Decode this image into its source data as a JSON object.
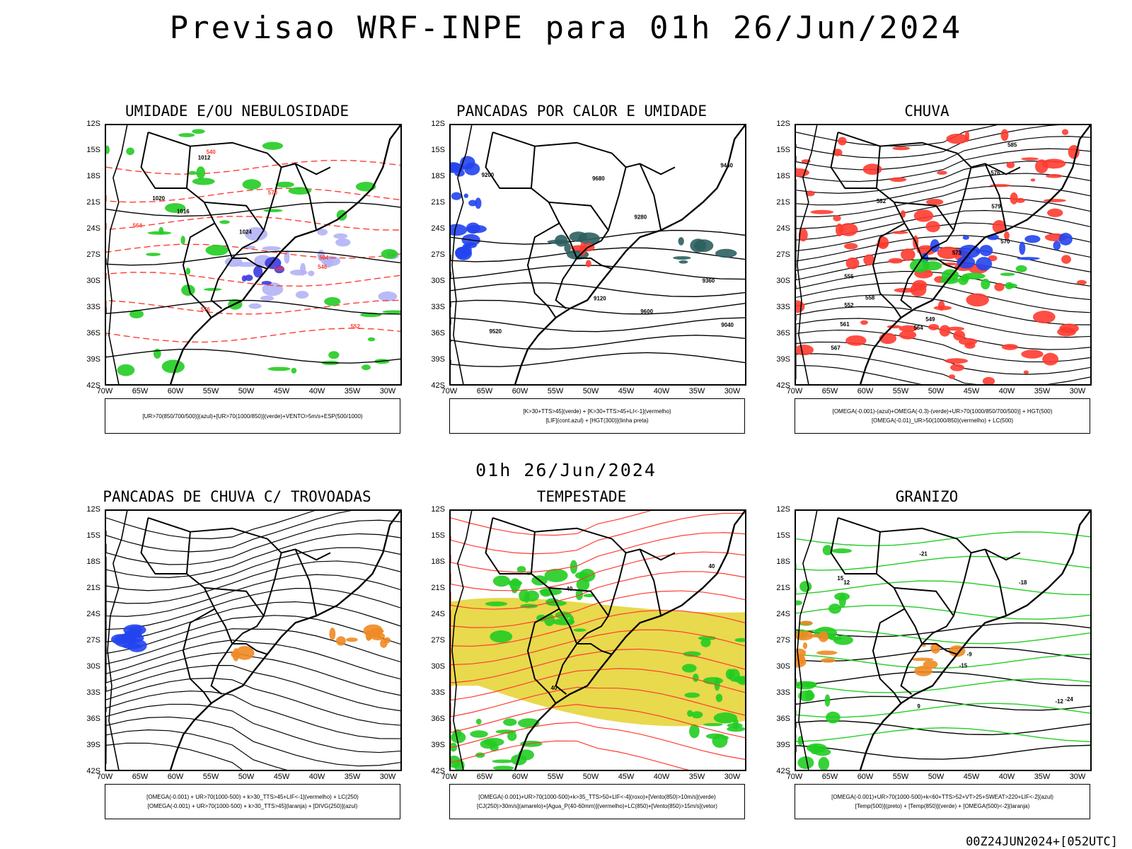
{
  "header": {
    "title": "Previsao WRF-INPE  para 01h 26/Jun/2024",
    "mid_title": "01h 26/Jun/2024",
    "footer": "00Z24JUN2024+[052UTC]"
  },
  "axes": {
    "lat_labels": [
      "12S",
      "15S",
      "18S",
      "21S",
      "24S",
      "27S",
      "30S",
      "33S",
      "36S",
      "39S",
      "42S"
    ],
    "lon_labels": [
      "70W",
      "65W",
      "60W",
      "55W",
      "50W",
      "45W",
      "40W",
      "35W",
      "30W"
    ]
  },
  "panels": [
    {
      "id": "umidade",
      "title": "UMIDADE E/OU NEBULOSIDADE",
      "legend": [
        "[UR>70(850/700/500)](azul)+[UR>70(1000/850)](verde)+VENTO>5m/s+ESP(500/1000)"
      ],
      "labels": [
        "1016",
        "1020",
        "1024",
        "1012",
        "576",
        "570",
        "564",
        "558",
        "552",
        "546",
        "540",
        "534"
      ]
    },
    {
      "id": "pancadas_calor",
      "title": "PANCADAS POR CALOR E UMIDADE",
      "legend": [
        "[K>30+TTS>45](verde) + [K>30+TTS>45+LI<-1](vermelho)",
        "[LIF](cont.azul) + [HGT(300)](linha preta)"
      ],
      "labels": [
        "9680",
        "9600",
        "9520",
        "9440",
        "9360",
        "9280",
        "9200",
        "9120",
        "9040"
      ]
    },
    {
      "id": "chuva",
      "title": "CHUVA",
      "legend": [
        "[OMEGA(-0.001)-(azul)+OMEGA(-0.3)-(verde)+UR>70(1000/850/700/500)] + HGT(500)",
        "[OMEGA(-0.01)_UR>50(1000/850)(vermelho) + LC(500)"
      ],
      "labels": [
        "585",
        "582",
        "579",
        "576",
        "573",
        "570",
        "567",
        "564",
        "561",
        "558",
        "555",
        "552",
        "549"
      ]
    },
    {
      "id": "pancadas_trovoadas",
      "title": "PANCADAS DE CHUVA C/ TROVOADAS",
      "legend": [
        "[OMEGA(-0.001) + UR>70(1000-500) + k>30_TTS>45+LIF<-1](vermelho) + LC(250)",
        "[OMEGA(-0.001) + UR>70(1000-500) + k>30_TTS>45](laranja) + [DIVG(250)](azul)"
      ],
      "labels": []
    },
    {
      "id": "tempestade",
      "title": "TEMPESTADE",
      "legend": [
        "[OMEGA(-0.001)+UR>70(1000-500)+k>35_TTS>50+LIF<-4](roxo)+[Vento(850)>10m/s](verde)",
        "[CJ(250)>30m/s](amarelo)+[Agua_P(40-60mm)](vermelho)+LC(850)+[Vento(850)>15m/s](vetor)"
      ],
      "labels": [
        "40",
        "40",
        "40"
      ]
    },
    {
      "id": "granizo",
      "title": "GRANIZO",
      "legend": [
        "[OMEGA(-0.001)+UR>70(1000-500)+k<60+TTS>52+VT>25+SWEAT>220+LIF<-2](azul)",
        "[Temp(500)](preto) + [Temp(850)](verde) + [OMEGA(500)<-2](laranja)"
      ],
      "labels": [
        "-9",
        "-12",
        "-15",
        "-18",
        "-21",
        "-24",
        "12",
        "15",
        "9"
      ]
    }
  ],
  "colors": {
    "coast": "#000000",
    "blue_shade": "#b3b3f5",
    "blue_shade_dark": "#3a3ae0",
    "green": "#22cc22",
    "red": "#ff3b30",
    "dark_teal": "#2e5f5f",
    "yellow": "#e6d53a",
    "orange": "#f08a24",
    "blue": "#2244ee",
    "red_line": "#ff3b30"
  }
}
